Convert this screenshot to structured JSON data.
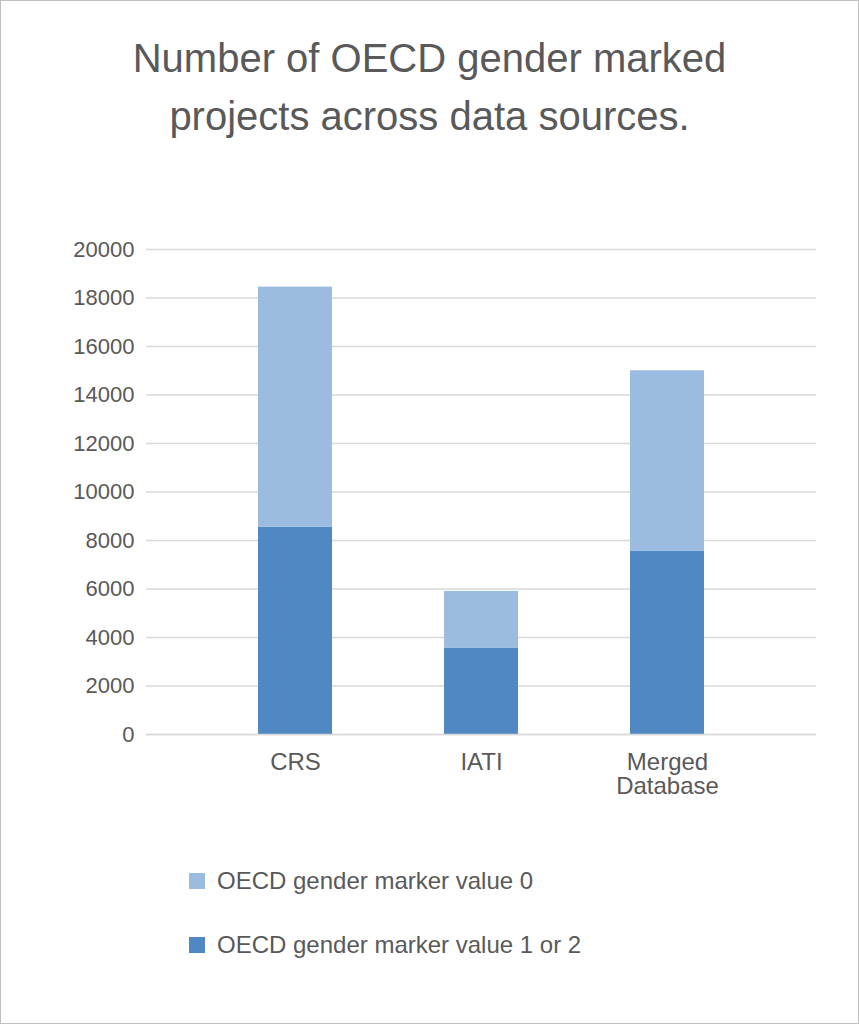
{
  "chart_data": {
    "type": "bar",
    "title": "Number of OECD gender marked projects across data sources.",
    "categories": [
      "CRS",
      "IATI",
      "Merged Database"
    ],
    "series": [
      {
        "name": "OECD gender marker value 0",
        "color": "#9BBBE0",
        "values": [
          9900,
          2350,
          7450
        ]
      },
      {
        "name": "OECD gender marker value 1 or 2",
        "color": "#4F88C2",
        "values": [
          8550,
          3550,
          7550
        ]
      }
    ],
    "stacked": true,
    "ylim": [
      0,
      20000
    ],
    "yticks": [
      0,
      2000,
      4000,
      6000,
      8000,
      10000,
      12000,
      14000,
      16000,
      18000,
      20000
    ],
    "grid": true,
    "legend": "bottom"
  }
}
